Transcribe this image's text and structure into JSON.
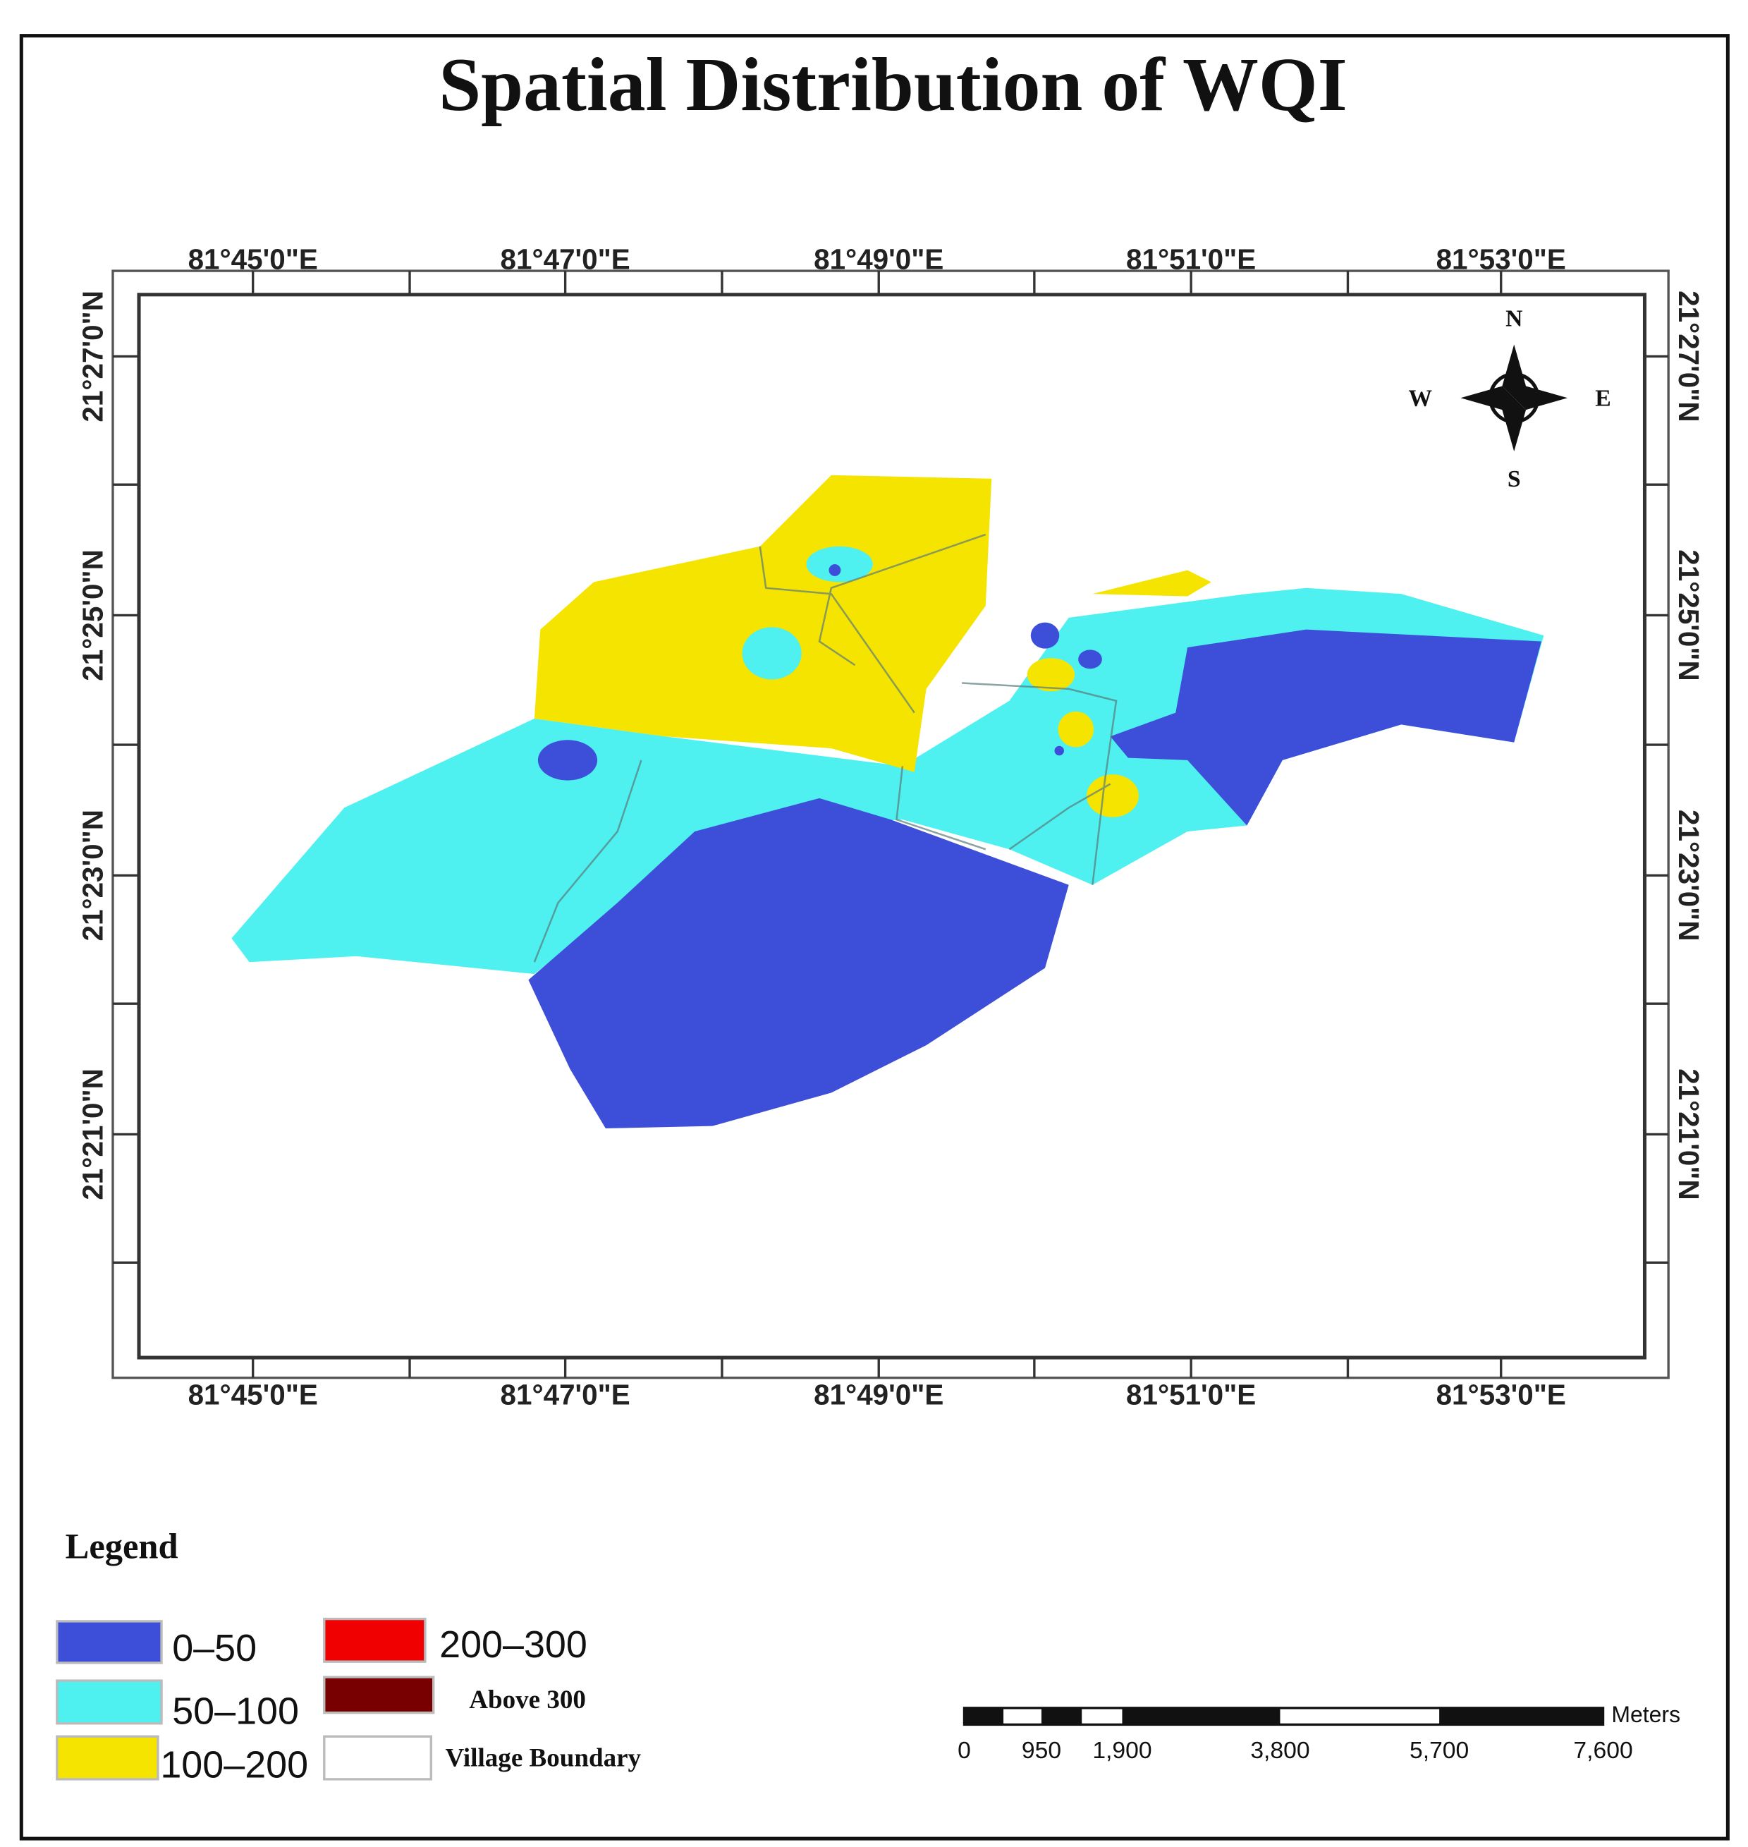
{
  "title": "Spatial Distribution of WQI",
  "map": {
    "x_labels": [
      "81°45'0\"E",
      "81°47'0\"E",
      "81°49'0\"E",
      "81°51'0\"E",
      "81°53'0\"E"
    ],
    "y_labels": [
      "21°27'0\"N",
      "21°25'0\"N",
      "21°23'0\"N",
      "21°21'0\"N"
    ]
  },
  "compass": {
    "north": "N",
    "south": "S",
    "east": "E",
    "west": "W"
  },
  "legend": {
    "title": "Legend",
    "items": [
      {
        "label": "0–50",
        "color": "#3d4fd9"
      },
      {
        "label": "50–100",
        "color": "#4ff0f0"
      },
      {
        "label": "100–200",
        "color": "#f5e400"
      },
      {
        "label": "200–300",
        "color": "#f00000"
      },
      {
        "label": "Above 300",
        "color": "#780000"
      },
      {
        "label": "Village Boundary",
        "color": "#ffffff"
      }
    ]
  },
  "scale_bar": {
    "labels": [
      "0",
      "950",
      "1,900",
      "3,800",
      "5,700",
      "7,600"
    ],
    "unit": "Meters"
  }
}
